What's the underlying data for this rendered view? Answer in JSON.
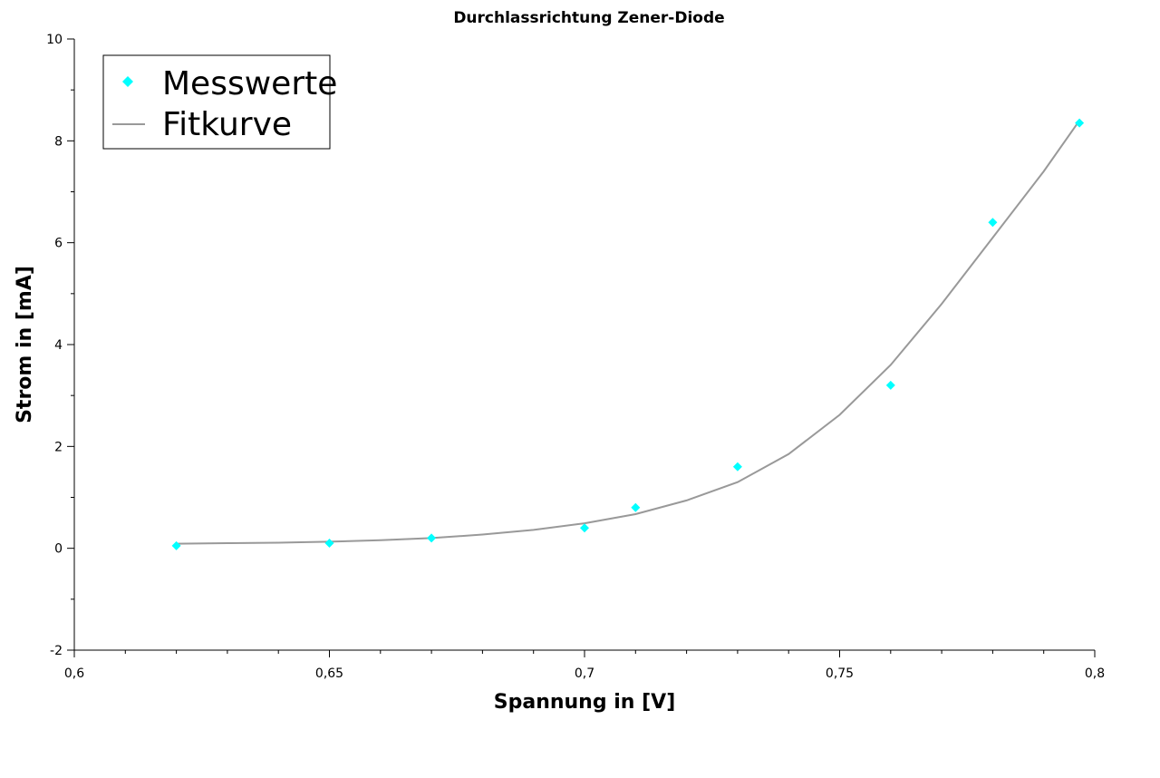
{
  "chart_data": {
    "type": "scatter",
    "title": "Durchlassrichtung Zener-Diode",
    "xlabel": "Spannung in [V]",
    "ylabel": "Strom in [mA]",
    "xlim": [
      0.6,
      0.8
    ],
    "ylim": [
      -2,
      10
    ],
    "x_ticks": [
      0.6,
      0.65,
      0.7,
      0.75,
      0.8
    ],
    "x_tick_labels": [
      "0,6",
      "0,65",
      "0,7",
      "0,75",
      "0,8"
    ],
    "y_ticks": [
      -2,
      0,
      2,
      4,
      6,
      8,
      10
    ],
    "y_tick_labels": [
      "-2",
      "0",
      "2",
      "4",
      "6",
      "8",
      "10"
    ],
    "grid": false,
    "legend_position": "top-left",
    "series": [
      {
        "name": "Messwerte",
        "kind": "markers",
        "marker": "diamond",
        "color": "#00FFFF",
        "x": [
          0.62,
          0.65,
          0.67,
          0.7,
          0.71,
          0.73,
          0.76,
          0.78,
          0.797
        ],
        "y": [
          0.05,
          0.1,
          0.2,
          0.4,
          0.8,
          1.6,
          3.2,
          6.4,
          8.35
        ]
      },
      {
        "name": "Fitkurve",
        "kind": "line",
        "color": "#999999",
        "x": [
          0.62,
          0.63,
          0.64,
          0.65,
          0.66,
          0.67,
          0.68,
          0.69,
          0.7,
          0.71,
          0.72,
          0.73,
          0.74,
          0.75,
          0.76,
          0.77,
          0.78,
          0.79,
          0.797
        ],
        "y": [
          0.09,
          0.1,
          0.11,
          0.13,
          0.16,
          0.2,
          0.27,
          0.36,
          0.49,
          0.67,
          0.94,
          1.3,
          1.85,
          2.62,
          3.6,
          4.8,
          6.1,
          7.4,
          8.4
        ]
      }
    ]
  }
}
